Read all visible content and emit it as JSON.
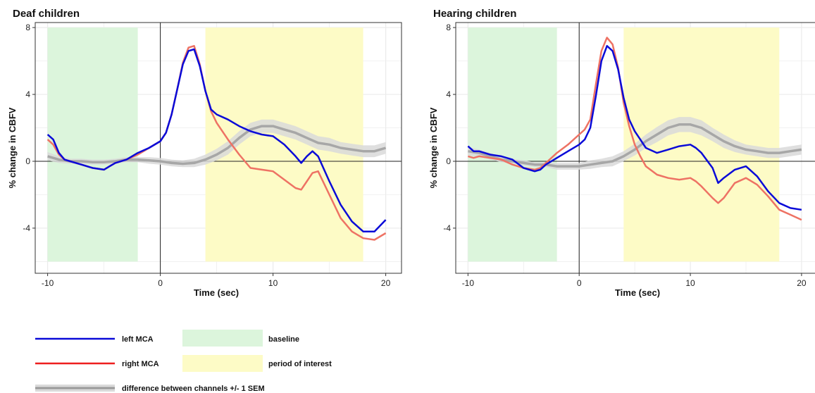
{
  "colors": {
    "left_mca": "#0a0ad8",
    "right_mca": "#ee7264",
    "difference": "#a7a7a7",
    "sem_band": "#d9d9d9",
    "sem_band_poi": "#c6c9a4",
    "baseline": "#dcf5dc",
    "period_of_interest": "#fdfbc6",
    "grid": "#ebebeb"
  },
  "legend": {
    "left_mca": "left MCA",
    "right_mca": "right MCA",
    "difference": "difference between channels +/- 1 SEM",
    "baseline": "baseline",
    "period_of_interest": "period of interest"
  },
  "chart_data": [
    {
      "type": "line",
      "title": "Deaf children",
      "xlabel": "Time (sec)",
      "ylabel": "% change in CBFV",
      "xlim": [
        -11.1,
        21.4
      ],
      "ylim": [
        -6.7,
        8.3
      ],
      "xticks": [
        -10,
        0,
        10,
        20
      ],
      "yticks": [
        -4,
        0,
        4,
        8
      ],
      "grid": true,
      "shaded_regions": [
        {
          "series": "baseline",
          "x": [
            -10,
            -2
          ]
        },
        {
          "series": "period of interest",
          "x": [
            4,
            18
          ]
        }
      ],
      "series": [
        {
          "name": "left MCA",
          "x": [
            -10,
            -9.5,
            -9,
            -8.5,
            -8,
            -7,
            -6,
            -5,
            -4.5,
            -4,
            -3,
            -2,
            -1,
            0,
            0.5,
            1,
            1.5,
            2,
            2.5,
            3,
            3.5,
            4,
            4.5,
            5,
            6,
            7,
            8,
            9,
            10,
            11,
            12,
            12.5,
            13,
            13.5,
            14,
            15,
            16,
            17,
            18,
            19,
            20
          ],
          "y": [
            1.6,
            1.3,
            0.5,
            0.1,
            0,
            -0.2,
            -0.4,
            -0.5,
            -0.3,
            -0.1,
            0.1,
            0.5,
            0.8,
            1.2,
            1.7,
            2.8,
            4.3,
            5.8,
            6.6,
            6.7,
            5.7,
            4.2,
            3.1,
            2.8,
            2.5,
            2.1,
            1.8,
            1.6,
            1.5,
            1.0,
            0.3,
            -0.1,
            0.3,
            0.6,
            0.3,
            -1.2,
            -2.6,
            -3.6,
            -4.2,
            -4.2,
            -3.5
          ]
        },
        {
          "name": "right MCA",
          "x": [
            -10,
            -9.5,
            -9,
            -8.5,
            -8,
            -7,
            -6,
            -5,
            -4.5,
            -4,
            -3,
            -2,
            -1,
            0,
            0.5,
            1,
            1.5,
            2,
            2.5,
            3,
            3.5,
            4,
            4.5,
            5,
            6,
            7,
            8,
            9,
            10,
            11,
            12,
            12.5,
            13,
            13.5,
            14,
            15,
            16,
            17,
            18,
            19,
            20
          ],
          "y": [
            1.3,
            1.0,
            0.4,
            0.1,
            0,
            -0.2,
            -0.4,
            -0.5,
            -0.3,
            -0.1,
            0.1,
            0.4,
            0.8,
            1.2,
            1.7,
            2.8,
            4.3,
            5.9,
            6.8,
            6.9,
            5.8,
            4.2,
            3.0,
            2.3,
            1.3,
            0.4,
            -0.4,
            -0.5,
            -0.6,
            -1.1,
            -1.6,
            -1.7,
            -1.2,
            -0.7,
            -0.6,
            -2.0,
            -3.4,
            -4.2,
            -4.6,
            -4.7,
            -4.3
          ]
        },
        {
          "name": "difference between channels +/- 1 SEM",
          "x": [
            -10,
            -9,
            -8,
            -7,
            -6,
            -5,
            -4,
            -3,
            -2,
            -1,
            0,
            1,
            2,
            3,
            4,
            5,
            6,
            7,
            8,
            9,
            10,
            11,
            12,
            13,
            14,
            15,
            16,
            17,
            18,
            19,
            20
          ],
          "y": [
            0.3,
            0.1,
            0,
            0,
            -0.05,
            -0.05,
            0,
            0.1,
            0.1,
            0.05,
            0,
            -0.1,
            -0.15,
            -0.1,
            0.1,
            0.4,
            0.8,
            1.4,
            1.9,
            2.1,
            2.1,
            1.9,
            1.7,
            1.4,
            1.1,
            1.0,
            0.8,
            0.7,
            0.6,
            0.6,
            0.8
          ],
          "sem": [
            0.25,
            0.2,
            0.15,
            0.15,
            0.15,
            0.15,
            0.15,
            0.15,
            0.15,
            0.2,
            0.2,
            0.2,
            0.2,
            0.25,
            0.3,
            0.35,
            0.4,
            0.4,
            0.4,
            0.4,
            0.4,
            0.4,
            0.4,
            0.4,
            0.4,
            0.4,
            0.35,
            0.35,
            0.35,
            0.35,
            0.35
          ]
        }
      ]
    },
    {
      "type": "line",
      "title": "Hearing children",
      "xlabel": "Time (sec)",
      "ylabel": "% change in CBFV",
      "xlim": [
        -11.1,
        21.4
      ],
      "ylim": [
        -6.7,
        8.3
      ],
      "xticks": [
        -10,
        0,
        10,
        20
      ],
      "yticks": [
        -4,
        0,
        4,
        8
      ],
      "grid": true,
      "shaded_regions": [
        {
          "series": "baseline",
          "x": [
            -10,
            -2
          ]
        },
        {
          "series": "period of interest",
          "x": [
            4,
            18
          ]
        }
      ],
      "series": [
        {
          "name": "left MCA",
          "x": [
            -10,
            -9.5,
            -9,
            -8,
            -7,
            -6,
            -5,
            -4,
            -3.5,
            -3,
            -2,
            -1,
            0,
            0.5,
            1,
            1.5,
            2,
            2.5,
            3,
            3.5,
            4,
            4.5,
            5,
            5.5,
            6,
            7,
            8,
            9,
            10,
            10.5,
            11,
            12,
            12.5,
            13,
            14,
            15,
            16,
            17,
            18,
            19,
            20
          ],
          "y": [
            0.9,
            0.6,
            0.6,
            0.4,
            0.3,
            0.1,
            -0.4,
            -0.6,
            -0.5,
            -0.2,
            0.2,
            0.6,
            1.0,
            1.3,
            2.0,
            3.9,
            6.0,
            6.9,
            6.6,
            5.5,
            3.8,
            2.5,
            1.8,
            1.3,
            0.8,
            0.5,
            0.7,
            0.9,
            1.0,
            0.8,
            0.5,
            -0.4,
            -1.3,
            -1.0,
            -0.5,
            -0.3,
            -0.9,
            -1.8,
            -2.5,
            -2.8,
            -2.9
          ]
        },
        {
          "name": "right MCA",
          "x": [
            -10,
            -9.5,
            -9,
            -8,
            -7,
            -6,
            -5,
            -4,
            -3.5,
            -3,
            -2,
            -1,
            0,
            0.5,
            1,
            1.5,
            2,
            2.5,
            3,
            3.5,
            4,
            4.5,
            5,
            5.5,
            6,
            7,
            8,
            9,
            10,
            10.5,
            11,
            12,
            12.5,
            13,
            14,
            15,
            16,
            17,
            18,
            19,
            20
          ],
          "y": [
            0.3,
            0.2,
            0.3,
            0.2,
            0.1,
            -0.2,
            -0.4,
            -0.5,
            -0.4,
            -0.1,
            0.5,
            1.0,
            1.6,
            1.9,
            2.5,
            4.6,
            6.6,
            7.4,
            7.0,
            5.6,
            3.5,
            2.1,
            1.0,
            0.3,
            -0.3,
            -0.8,
            -1.0,
            -1.1,
            -1.0,
            -1.2,
            -1.5,
            -2.2,
            -2.5,
            -2.2,
            -1.3,
            -1.0,
            -1.4,
            -2.1,
            -2.9,
            -3.2,
            -3.5
          ]
        },
        {
          "name": "difference between channels +/- 1 SEM",
          "x": [
            -10,
            -9,
            -8,
            -7,
            -6,
            -5,
            -4,
            -3,
            -2,
            -1,
            0,
            1,
            2,
            3,
            4,
            5,
            6,
            7,
            8,
            9,
            10,
            11,
            12,
            13,
            14,
            15,
            16,
            17,
            18,
            19,
            20
          ],
          "y": [
            0.6,
            0.5,
            0.3,
            0.1,
            0,
            -0.1,
            -0.2,
            -0.2,
            -0.3,
            -0.3,
            -0.3,
            -0.2,
            -0.1,
            0,
            0.3,
            0.7,
            1.2,
            1.6,
            2.0,
            2.2,
            2.2,
            2.0,
            1.6,
            1.2,
            0.9,
            0.7,
            0.6,
            0.5,
            0.5,
            0.6,
            0.7
          ],
          "sem": [
            0.25,
            0.2,
            0.2,
            0.15,
            0.15,
            0.15,
            0.15,
            0.15,
            0.2,
            0.2,
            0.2,
            0.25,
            0.25,
            0.3,
            0.3,
            0.35,
            0.4,
            0.45,
            0.45,
            0.45,
            0.45,
            0.45,
            0.4,
            0.4,
            0.35,
            0.3,
            0.3,
            0.3,
            0.3,
            0.3,
            0.3
          ]
        }
      ]
    }
  ]
}
